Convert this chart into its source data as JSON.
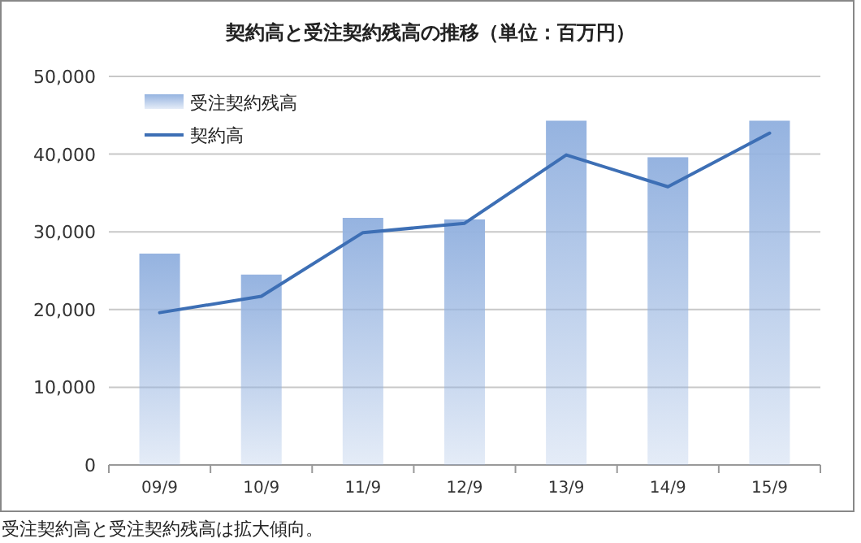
{
  "chart_data": {
    "type": "bar",
    "title": "契約高と受注契約残高の推移（単位：百万円）",
    "categories": [
      "09/9",
      "10/9",
      "11/9",
      "12/9",
      "13/9",
      "14/9",
      "15/9"
    ],
    "series": [
      {
        "name": "受注契約残高",
        "color": "#95b3e0",
        "values": [
          27200,
          24500,
          31800,
          31600,
          44300,
          39600,
          44300
        ]
      },
      {
        "name": "契約高",
        "type": "line",
        "color": "#3d6fb5",
        "values": [
          19600,
          21700,
          29900,
          31100,
          39900,
          35800,
          42700
        ]
      }
    ],
    "ylim": [
      0,
      50000
    ],
    "yticks": [
      {
        "value": 0,
        "label": "0"
      },
      {
        "value": 10000,
        "label": "10,000"
      },
      {
        "value": 20000,
        "label": "20,000"
      },
      {
        "value": 30000,
        "label": "30,000"
      },
      {
        "value": 40000,
        "label": "40,000"
      },
      {
        "value": 50000,
        "label": "50,000"
      }
    ],
    "grid": "y",
    "legend": "top left",
    "marker": "none",
    "line_style": "solid",
    "annotations": [
      "受注契約高と受注契約残高は拡大傾向。"
    ]
  }
}
